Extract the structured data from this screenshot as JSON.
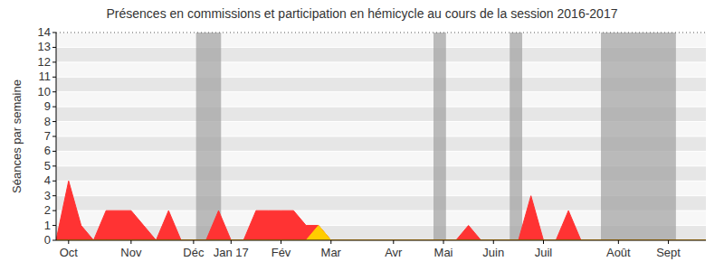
{
  "chart_data": {
    "type": "area",
    "title": "Présences en commissions et participation en hémicycle au cours de la session 2016-2017",
    "y_label": "Séances par semaine",
    "categories": [
      null,
      "Oct",
      null,
      null,
      null,
      null,
      "Nov",
      null,
      null,
      null,
      null,
      "Déc",
      null,
      null,
      "Jan 17",
      null,
      null,
      null,
      "Fév",
      null,
      null,
      null,
      "Mar",
      null,
      null,
      null,
      null,
      "Avr",
      null,
      null,
      null,
      "Mai",
      null,
      null,
      null,
      "Juin",
      null,
      null,
      null,
      "Juil",
      null,
      null,
      null,
      null,
      null,
      "Août",
      null,
      null,
      null,
      "Sept",
      null,
      null,
      null
    ],
    "series": [
      {
        "color": "#ff3333",
        "values": [
          0,
          4,
          1,
          0,
          2,
          2,
          2,
          1,
          0,
          2,
          0,
          0,
          0,
          2,
          0,
          0,
          2,
          2,
          2,
          2,
          1,
          1,
          0,
          0,
          0,
          0,
          0,
          0,
          0,
          0,
          0,
          0,
          0,
          1,
          0,
          0,
          0,
          0,
          3,
          0,
          0,
          2,
          0,
          0,
          0,
          0,
          0,
          0,
          0,
          0,
          0,
          0,
          0
        ]
      },
      {
        "color": "#ffcc00",
        "values": [
          0,
          0,
          0,
          0,
          0,
          0,
          0,
          0,
          0,
          0,
          0,
          0,
          0,
          0,
          0,
          0,
          0,
          0,
          0,
          0,
          0,
          1,
          0,
          0,
          0,
          0,
          0,
          0,
          0,
          0,
          0,
          0,
          0,
          0,
          0,
          0,
          0,
          0,
          0,
          0,
          0,
          0,
          0,
          0,
          0,
          0,
          0,
          0,
          0,
          0,
          0,
          0,
          0
        ]
      }
    ],
    "shaded_weeks": [
      [
        11.2,
        13.2
      ],
      [
        30.2,
        31.2
      ],
      [
        36.3,
        37.3
      ],
      [
        43.6,
        49.6
      ]
    ],
    "ylim": [
      0,
      14
    ],
    "yticks": [
      0,
      1,
      2,
      3,
      4,
      5,
      6,
      7,
      8,
      9,
      10,
      11,
      12,
      13,
      14
    ],
    "grid": true
  }
}
